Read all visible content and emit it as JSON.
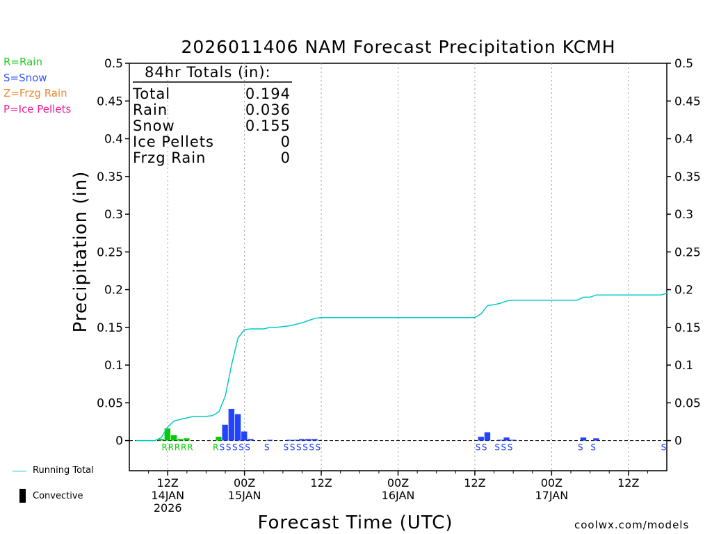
{
  "chart_data": {
    "type": "bar",
    "title": "2026011406 NAM Forecast Precipitation KCMH",
    "xlabel": "Forecast Time (UTC)",
    "ylabel": "Precipitation (in)",
    "ylim": [
      -0.04,
      0.5
    ],
    "y_ticks": [
      "0.5",
      "0.45",
      "0.4",
      "0.35",
      "0.3",
      "0.25",
      "0.2",
      "0.15",
      "0.1",
      "0.05",
      "0"
    ],
    "x_range_hours": [
      0,
      84
    ],
    "x_ticks": [
      {
        "hour": 6,
        "lines": [
          "12Z",
          "14JAN",
          "2026"
        ]
      },
      {
        "hour": 18,
        "lines": [
          "00Z",
          "15JAN"
        ]
      },
      {
        "hour": 30,
        "lines": [
          "12Z"
        ]
      },
      {
        "hour": 42,
        "lines": [
          "00Z",
          "16JAN"
        ]
      },
      {
        "hour": 54,
        "lines": [
          "12Z"
        ]
      },
      {
        "hour": 66,
        "lines": [
          "00Z",
          "17JAN"
        ]
      },
      {
        "hour": 78,
        "lines": [
          "12Z"
        ]
      }
    ],
    "series": [
      {
        "name": "Rain",
        "color": "#00cc00",
        "bars": [
          {
            "hour": 5,
            "value": 0.002
          },
          {
            "hour": 6,
            "value": 0.016
          },
          {
            "hour": 7,
            "value": 0.007
          },
          {
            "hour": 8,
            "value": 0.002
          },
          {
            "hour": 9,
            "value": 0.003
          },
          {
            "hour": 14,
            "value": 0.005
          }
        ],
        "type_labels": [
          {
            "hour": 6,
            "text": "R"
          },
          {
            "hour": 7,
            "text": "R"
          },
          {
            "hour": 8,
            "text": "R"
          },
          {
            "hour": 9,
            "text": "R"
          },
          {
            "hour": 10,
            "text": "R"
          },
          {
            "hour": 14,
            "text": "R"
          }
        ]
      },
      {
        "name": "Snow",
        "color": "#2244ff",
        "bars": [
          {
            "hour": 15,
            "value": 0.021
          },
          {
            "hour": 16,
            "value": 0.042
          },
          {
            "hour": 17,
            "value": 0.035
          },
          {
            "hour": 18,
            "value": 0.012
          },
          {
            "hour": 19,
            "value": 0.002
          },
          {
            "hour": 22,
            "value": 0.001
          },
          {
            "hour": 25,
            "value": 0.001
          },
          {
            "hour": 26,
            "value": 0.001
          },
          {
            "hour": 27,
            "value": 0.002
          },
          {
            "hour": 28,
            "value": 0.002
          },
          {
            "hour": 29,
            "value": 0.002
          },
          {
            "hour": 55,
            "value": 0.005
          },
          {
            "hour": 56,
            "value": 0.011
          },
          {
            "hour": 58,
            "value": 0.001
          },
          {
            "hour": 59,
            "value": 0.004
          },
          {
            "hour": 60,
            "value": 0.001
          },
          {
            "hour": 71,
            "value": 0.004
          },
          {
            "hour": 73,
            "value": 0.003
          }
        ],
        "type_labels": [
          {
            "hour": 15,
            "text": "S"
          },
          {
            "hour": 16,
            "text": "S"
          },
          {
            "hour": 17,
            "text": "S"
          },
          {
            "hour": 18,
            "text": "S"
          },
          {
            "hour": 19,
            "text": "S"
          },
          {
            "hour": 22,
            "text": "S"
          },
          {
            "hour": 25,
            "text": "S"
          },
          {
            "hour": 26,
            "text": "S"
          },
          {
            "hour": 27,
            "text": "S"
          },
          {
            "hour": 28,
            "text": "S"
          },
          {
            "hour": 29,
            "text": "S"
          },
          {
            "hour": 30,
            "text": "S"
          },
          {
            "hour": 55,
            "text": "S"
          },
          {
            "hour": 56,
            "text": "S"
          },
          {
            "hour": 58,
            "text": "S"
          },
          {
            "hour": 59,
            "text": "S"
          },
          {
            "hour": 60,
            "text": "S"
          },
          {
            "hour": 71,
            "text": "S"
          },
          {
            "hour": 73,
            "text": "S"
          },
          {
            "hour": 84,
            "text": "S"
          }
        ]
      },
      {
        "name": "Running Total",
        "color": "#00c8c8",
        "type": "line",
        "points": [
          [
            1,
            0
          ],
          [
            4,
            0
          ],
          [
            5,
            0.004
          ],
          [
            6,
            0.018
          ],
          [
            7,
            0.026
          ],
          [
            8,
            0.028
          ],
          [
            9,
            0.03
          ],
          [
            10,
            0.032
          ],
          [
            11,
            0.032
          ],
          [
            12,
            0.032
          ],
          [
            13,
            0.033
          ],
          [
            14,
            0.038
          ],
          [
            15,
            0.059
          ],
          [
            16,
            0.101
          ],
          [
            17,
            0.136
          ],
          [
            18,
            0.147
          ],
          [
            19,
            0.148
          ],
          [
            20,
            0.148
          ],
          [
            21,
            0.148
          ],
          [
            22,
            0.15
          ],
          [
            23,
            0.15
          ],
          [
            24,
            0.151
          ],
          [
            25,
            0.152
          ],
          [
            26,
            0.154
          ],
          [
            27,
            0.156
          ],
          [
            28,
            0.159
          ],
          [
            29,
            0.162
          ],
          [
            30,
            0.163
          ],
          [
            54,
            0.163
          ],
          [
            55,
            0.168
          ],
          [
            56,
            0.179
          ],
          [
            57,
            0.18
          ],
          [
            58,
            0.182
          ],
          [
            59,
            0.185
          ],
          [
            60,
            0.186
          ],
          [
            70,
            0.186
          ],
          [
            71,
            0.19
          ],
          [
            72,
            0.19
          ],
          [
            73,
            0.193
          ],
          [
            83,
            0.193
          ],
          [
            84,
            0.195
          ]
        ]
      }
    ],
    "totals_box": {
      "heading": "84hr Totals (in):",
      "rows": [
        {
          "label": "Total",
          "value": "0.194"
        },
        {
          "label": "Rain",
          "value": "0.036"
        },
        {
          "label": "Snow",
          "value": "0.155"
        },
        {
          "label": "Ice Pellets",
          "value": "0"
        },
        {
          "label": "Frzg Rain",
          "value": "0"
        }
      ]
    }
  },
  "legend": [
    {
      "text": "R=Rain",
      "color": "#22cc22"
    },
    {
      "text": "S=Snow",
      "color": "#3355ff"
    },
    {
      "text": "Z=Frzg Rain",
      "color": "#ee8833"
    },
    {
      "text": "P=Ice Pellets",
      "color": "#ee2299"
    }
  ],
  "bottom_legend": {
    "running_total": "Running Total",
    "convective": "Convective"
  },
  "credit": "coolwx.com/models"
}
